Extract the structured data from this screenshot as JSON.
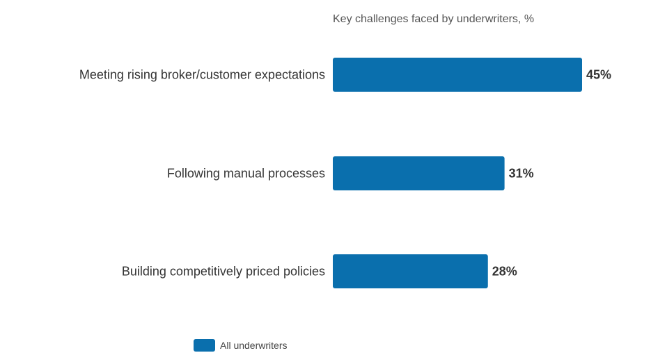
{
  "chart_data": {
    "type": "bar",
    "orientation": "horizontal",
    "title": "Key challenges faced by underwriters, %",
    "categories": [
      "Meeting rising broker/customer expectations",
      "Following manual processes",
      "Building competitively priced policies"
    ],
    "series": [
      {
        "name": "All underwriters",
        "values": [
          45,
          31,
          28
        ],
        "labels": [
          "45%",
          "31%",
          "28%"
        ],
        "color": "#0a6fad"
      }
    ],
    "xlim": [
      0,
      45
    ],
    "grid": false,
    "legend_position": "bottom-left"
  }
}
